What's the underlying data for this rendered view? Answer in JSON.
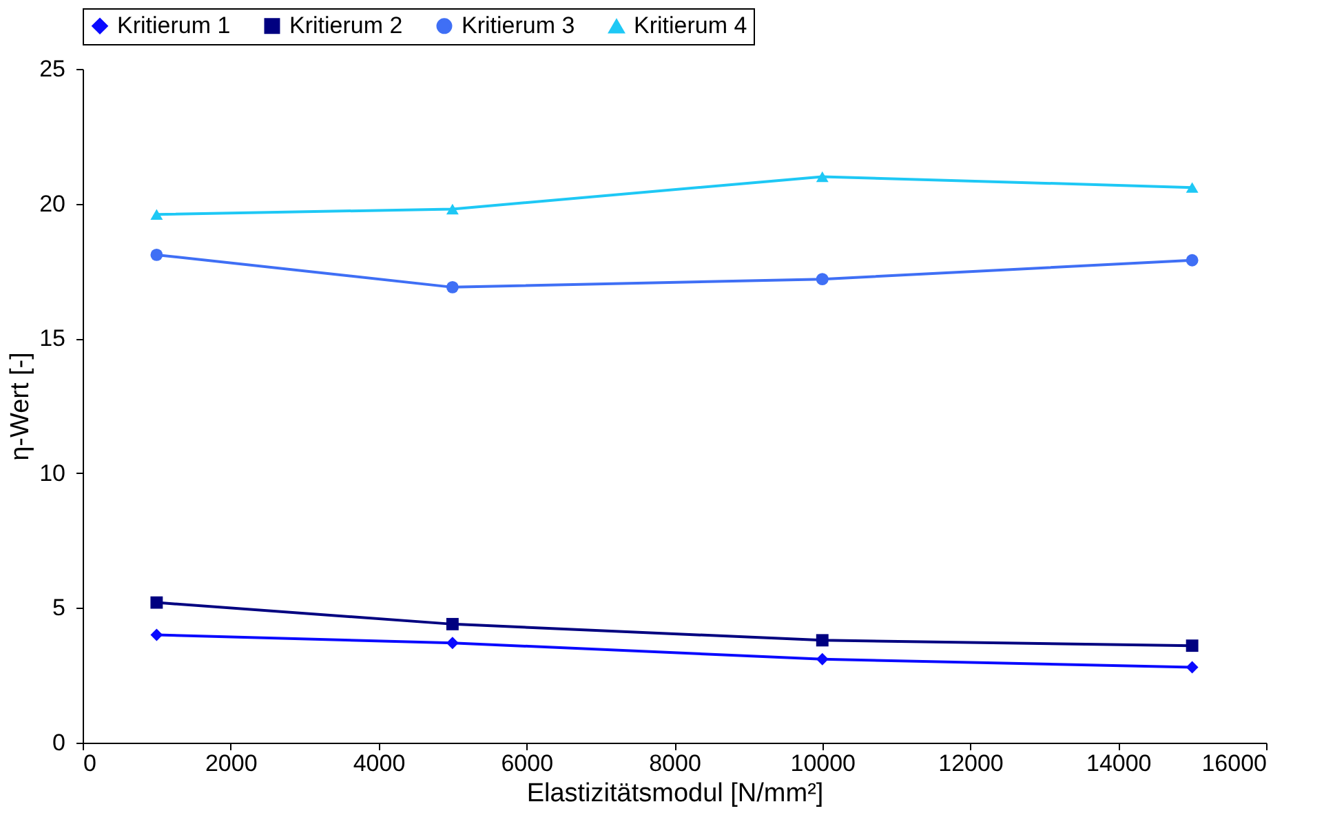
{
  "chart_data": {
    "type": "line",
    "xlabel": "Elastizitätsmodul [N/mm²]",
    "ylabel": "η-Wert [-]",
    "x": [
      1000,
      5000,
      10000,
      15000
    ],
    "xlim": [
      0,
      16000
    ],
    "xticks": [
      0,
      2000,
      4000,
      6000,
      8000,
      10000,
      12000,
      14000,
      16000
    ],
    "ylim": [
      0,
      25
    ],
    "yticks": [
      0,
      5,
      10,
      15,
      20,
      25
    ],
    "grid": false,
    "legend": "top",
    "line_style": "solid",
    "series": [
      {
        "name": "Kritierum 1",
        "color": "#0a0aff",
        "marker": "diamond",
        "values": [
          4.0,
          3.7,
          3.1,
          2.8
        ]
      },
      {
        "name": "Kritierum 2",
        "color": "#000080",
        "marker": "square",
        "values": [
          5.2,
          4.4,
          3.8,
          3.6
        ]
      },
      {
        "name": "Kritierum 3",
        "color": "#3f6ff5",
        "marker": "circle",
        "values": [
          18.1,
          16.9,
          17.2,
          17.9
        ]
      },
      {
        "name": "Kritierum 4",
        "color": "#1ec8f5",
        "marker": "triangle",
        "values": [
          19.6,
          19.8,
          21.0,
          20.6
        ]
      }
    ]
  }
}
